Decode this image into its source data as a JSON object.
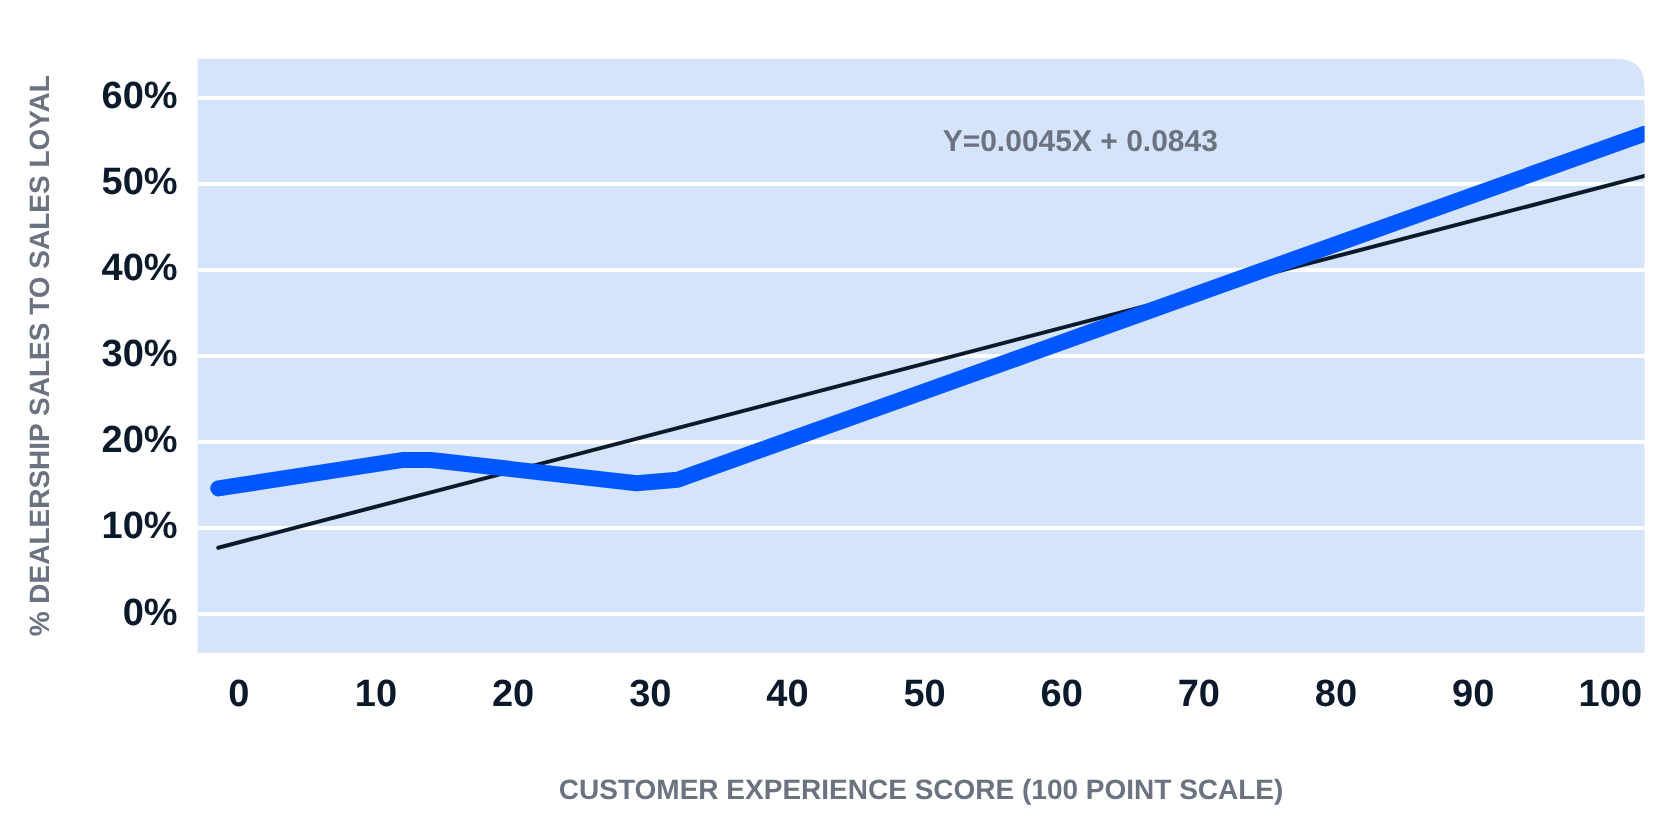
{
  "chart_data": {
    "type": "line",
    "xlabel": "CUSTOMER EXPERIENCE SCORE (100 POINT SCALE)",
    "ylabel": "% DEALERSHIP SALES TO SALES LOYAL",
    "xlim": [
      -3,
      102.5
    ],
    "xticks": [
      0,
      10,
      20,
      30,
      40,
      50,
      60,
      70,
      80,
      90,
      100
    ],
    "ylim": [
      -4.5,
      64.5
    ],
    "yticks": [
      {
        "value": 0,
        "label": "0%"
      },
      {
        "value": 10,
        "label": "10%"
      },
      {
        "value": 20,
        "label": "20%"
      },
      {
        "value": 30,
        "label": "30%"
      },
      {
        "value": 40,
        "label": "40%"
      },
      {
        "value": 50,
        "label": "50%"
      },
      {
        "value": 60,
        "label": "60%"
      }
    ],
    "grid": "y",
    "legend": false,
    "marker": "none",
    "line_style": "solid",
    "annotations": [
      "Y=0.0045X + 0.0843"
    ],
    "series": [
      {
        "color": "#0057ff",
        "x": [
          -1.5,
          12,
          14,
          29,
          32,
          102.5
        ],
        "values": [
          14.6,
          17.9,
          17.9,
          15.2,
          15.6,
          55.8
        ]
      },
      {
        "type": "line",
        "color": "#0b1a2b",
        "x": [
          -1.5,
          102.5
        ],
        "values": [
          7.7,
          50.9
        ]
      }
    ]
  }
}
